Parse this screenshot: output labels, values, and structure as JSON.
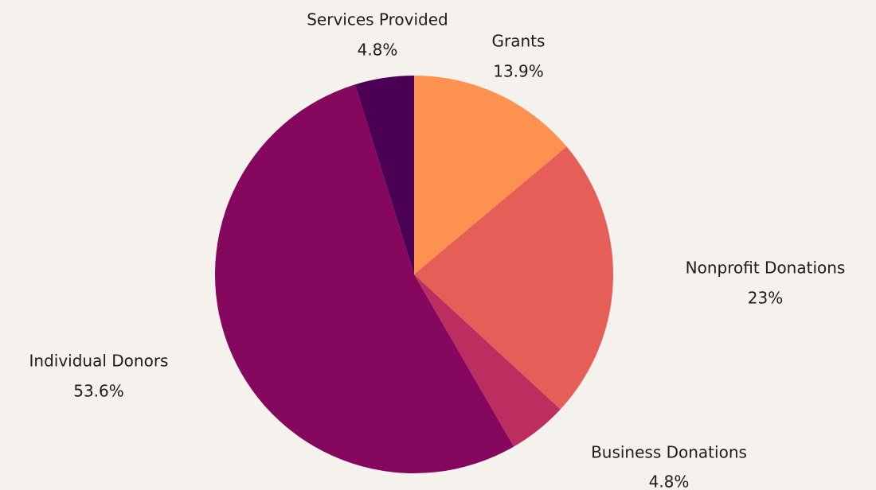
{
  "chart_data": {
    "type": "pie",
    "slices": [
      {
        "label": "Grants",
        "value": 13.9,
        "display": "13.9%",
        "color": "#fd9150"
      },
      {
        "label": "Nonprofit Donations",
        "value": 23,
        "display": "23%",
        "color": "#e55e58"
      },
      {
        "label": "Business Donations",
        "value": 4.8,
        "display": "4.8%",
        "color": "#bb2e5f"
      },
      {
        "label": "Individual Donors",
        "value": 53.6,
        "display": "53.6%",
        "color": "#86075e"
      },
      {
        "label": "Services Provided",
        "value": 4.8,
        "display": "4.8%",
        "color": "#4c0054"
      }
    ],
    "start": "12 o'clock",
    "direction": "clockwise",
    "legend": "none"
  }
}
